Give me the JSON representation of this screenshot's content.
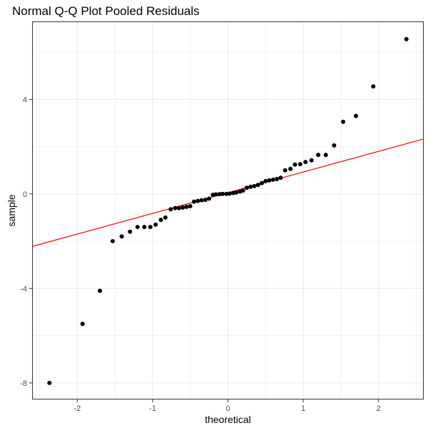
{
  "chart_data": {
    "type": "scatter",
    "title": "Normal Q-Q Plot Pooled Residuals",
    "xlabel": "theoretical",
    "ylabel": "sample",
    "xlim": [
      -2.6,
      2.6
    ],
    "ylim": [
      -8.7,
      7.3
    ],
    "x_ticks": [
      -2,
      -1,
      0,
      1,
      2
    ],
    "y_ticks": [
      -8,
      -4,
      0,
      4
    ],
    "grid": true,
    "legend": "none",
    "colors": {
      "points": "#000000",
      "reference_line": "#ff0000",
      "grid": "#ebebeb",
      "panel_border": "#333333"
    },
    "reference_line": {
      "intercept": 0.05,
      "slope": 0.875
    },
    "points": [
      [
        -2.37,
        -8.0
      ],
      [
        -1.93,
        -5.5
      ],
      [
        -1.7,
        -4.1
      ],
      [
        -1.53,
        -2.0
      ],
      [
        -1.41,
        -1.8
      ],
      [
        -1.3,
        -1.6
      ],
      [
        -1.2,
        -1.4
      ],
      [
        -1.11,
        -1.4
      ],
      [
        -1.03,
        -1.4
      ],
      [
        -0.96,
        -1.3
      ],
      [
        -0.89,
        -1.1
      ],
      [
        -0.83,
        -1.0
      ],
      [
        -0.76,
        -0.65
      ],
      [
        -0.7,
        -0.6
      ],
      [
        -0.65,
        -0.6
      ],
      [
        -0.6,
        -0.58
      ],
      [
        -0.55,
        -0.55
      ],
      [
        -0.5,
        -0.52
      ],
      [
        -0.45,
        -0.33
      ],
      [
        -0.4,
        -0.3
      ],
      [
        -0.35,
        -0.27
      ],
      [
        -0.3,
        -0.25
      ],
      [
        -0.25,
        -0.2
      ],
      [
        -0.2,
        -0.04
      ],
      [
        -0.16,
        -0.02
      ],
      [
        -0.11,
        -0.01
      ],
      [
        -0.07,
        0.0
      ],
      [
        -0.02,
        0.0
      ],
      [
        0.02,
        0.01
      ],
      [
        0.07,
        0.04
      ],
      [
        0.11,
        0.06
      ],
      [
        0.16,
        0.1
      ],
      [
        0.2,
        0.14
      ],
      [
        0.25,
        0.26
      ],
      [
        0.3,
        0.3
      ],
      [
        0.35,
        0.33
      ],
      [
        0.4,
        0.38
      ],
      [
        0.45,
        0.46
      ],
      [
        0.5,
        0.54
      ],
      [
        0.55,
        0.57
      ],
      [
        0.6,
        0.6
      ],
      [
        0.65,
        0.63
      ],
      [
        0.7,
        0.68
      ],
      [
        0.76,
        1.0
      ],
      [
        0.83,
        1.06
      ],
      [
        0.89,
        1.24
      ],
      [
        0.96,
        1.26
      ],
      [
        1.03,
        1.35
      ],
      [
        1.11,
        1.42
      ],
      [
        1.2,
        1.65
      ],
      [
        1.3,
        1.65
      ],
      [
        1.41,
        2.05
      ],
      [
        1.53,
        3.05
      ],
      [
        1.7,
        3.3
      ],
      [
        1.93,
        4.55
      ],
      [
        2.37,
        6.55
      ]
    ]
  }
}
